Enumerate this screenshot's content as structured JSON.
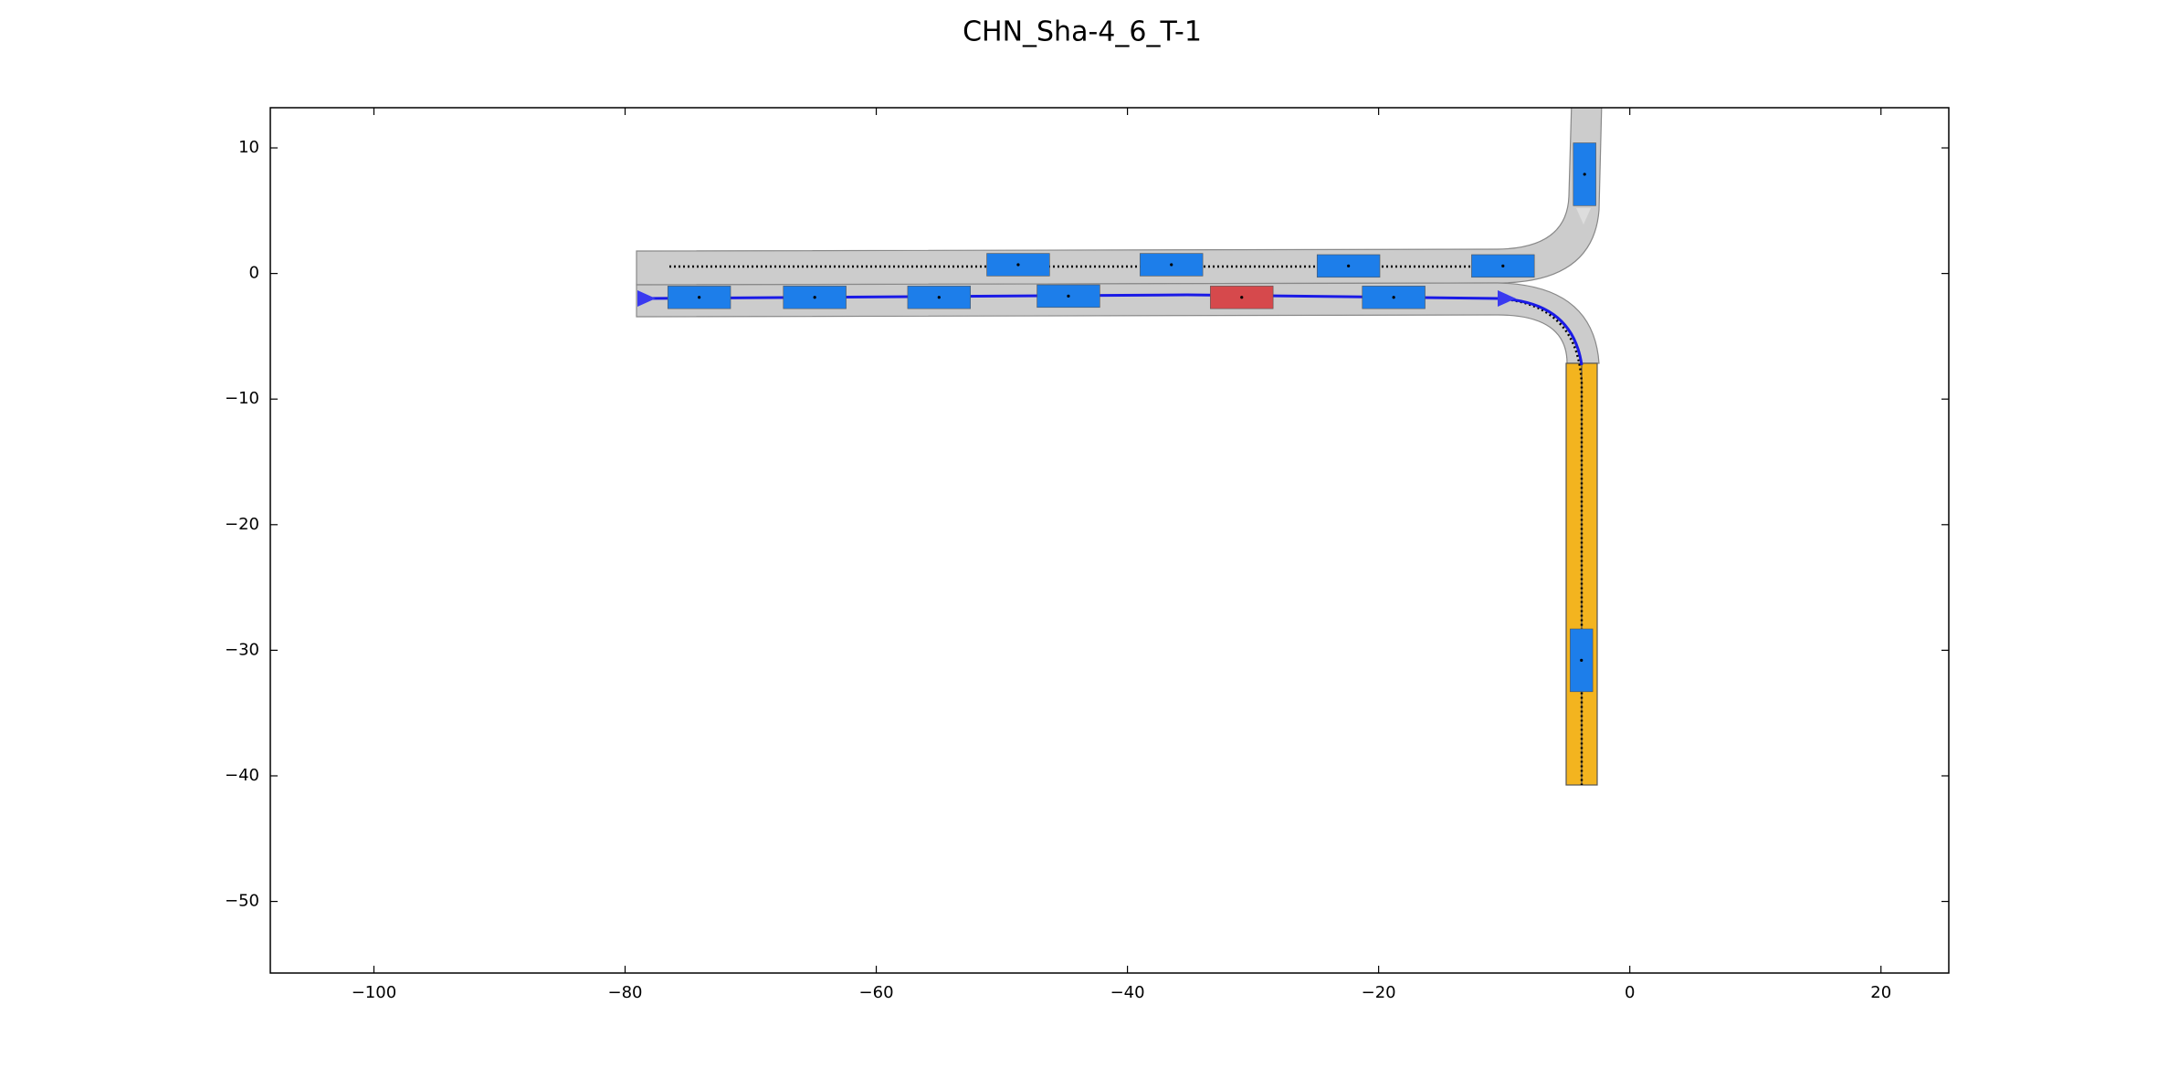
{
  "chart_data": {
    "type": "scenario",
    "title": "CHN_Sha-4_6_T-1",
    "xlim": [
      -108.25,
      25.4
    ],
    "ylim": [
      -55.7,
      13.2
    ],
    "xticks": [
      {
        "value": -100,
        "label": "−100"
      },
      {
        "value": -80,
        "label": "−80"
      },
      {
        "value": -60,
        "label": "−60"
      },
      {
        "value": -40,
        "label": "−40"
      },
      {
        "value": -20,
        "label": "−20"
      },
      0,
      20
    ],
    "yticks": [
      10,
      0,
      {
        "value": -10,
        "label": "−10"
      },
      {
        "value": -20,
        "label": "−20"
      },
      {
        "value": -30,
        "label": "−30"
      },
      {
        "value": -40,
        "label": "−40"
      },
      {
        "value": -50,
        "label": "−50"
      }
    ],
    "obstacles": {
      "color": "#1d7eea",
      "x": [
        -48.7,
        -36.5,
        -22.4,
        -10.1,
        -74.1,
        -64.9,
        -55.0,
        -44.7,
        -18.8,
        -3.6,
        -3.85
      ],
      "y": [
        0.7,
        0.7,
        0.6,
        0.6,
        -1.9,
        -1.9,
        -1.9,
        -1.8,
        -1.9,
        7.9,
        -30.8
      ]
    },
    "ego": {
      "color": "#d6494c",
      "x": [
        -30.9
      ],
      "y": [
        -1.9
      ]
    }
  }
}
